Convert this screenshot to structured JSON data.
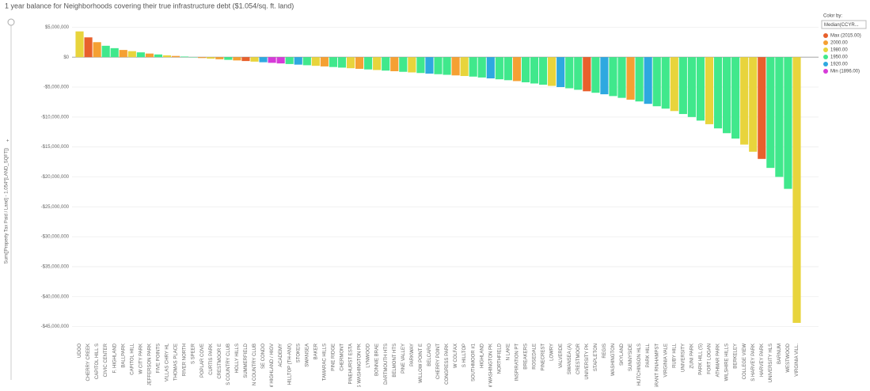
{
  "chart_data": {
    "type": "bar",
    "title": "1 year balance for Neighborhoods covering their true infrastructure debt ($1.054/sq. ft. land)",
    "y_label": "Sum([Property Tax Paid / Land] - 1.054*[LAND_SQFT])",
    "legend_title": "Color by:",
    "legend_selector": "Median(CCYR...",
    "legend": [
      {
        "name": "Max (2015.00)",
        "color": "#e8602c"
      },
      {
        "name": "2000.00",
        "color": "#f5a033"
      },
      {
        "name": "1980.00",
        "color": "#e8d43c"
      },
      {
        "name": "1950.00",
        "color": "#40e88c"
      },
      {
        "name": "1920.00",
        "color": "#2ea8e0"
      },
      {
        "name": "Min (1896.00)",
        "color": "#d63bd8"
      }
    ],
    "categories": [
      "UDOO",
      "CHERRY CREEK",
      "CAPITOL HILL S",
      "CIVIC CENTER",
      "F. HIGHLAND",
      "BALLPARK",
      "CAPITOL HILL",
      "W CITY PARK",
      "JEFFERSON PARK",
      "FIVE POINTS",
      "VILLAS CHRY HL",
      "THOMAS PLACE",
      "RIVER NORTH",
      "S SPEER",
      "POPLAR COVE",
      "CURTIS PARK",
      "CRESTMOOR E",
      "S COUNTRY CLUB",
      "HOLLY HILLS",
      "SUMMERFIELD",
      "N COUNTRY CLUB",
      "SE CONDO",
      "W HIGHLAND / HIGV",
      "ACADEMY",
      "HILLTOP (TH-ANX)",
      "STOKES",
      "SWANSEA",
      "BAKER",
      "TAMARAC HILLS",
      "PINE RIDGE",
      "CHERMONT",
      "PINEHURST ESTA",
      "S WASHINGTON PK",
      "LYNWOOD",
      "BONNIE BRAE",
      "DARTMOUTH HTS",
      "BELMONT HTS",
      "PINE VALLEY",
      "PARKWAY",
      "WILLOW POINT E",
      "BELCARO",
      "CHERRY POINT",
      "CONGRESS PARK",
      "W COLFAX",
      "S HILLTOP",
      "SOUTHMOOR #1",
      "HIGHLAND",
      "W WASHINGTON PK",
      "NORTHFIELD",
      "N LAKE",
      "INSPIRATION PT",
      "BREAKERS",
      "ROSEDALE",
      "PINECREST",
      "LOWRY",
      "VALVERDE",
      "SWANSEA (A)",
      "CRESTMOOR",
      "UNIVERSITY PK",
      "STAPLETON",
      "REGIS",
      "WASHINGTON",
      "SKYLAND",
      "SUNNYSIDE",
      "HUTCHINSON HLS",
      "PARK HILL",
      "GRANT RN/HAMPST",
      "VIRGINIA VALE",
      "RUBY HILL",
      "UNIVERSITY",
      "ZUNI PARK",
      "PARK HILL (S)",
      "FORT LOGAN",
      "ATHMAR PARK",
      "WILSHIRE HILLS",
      "BERKELEY",
      "COLLEGE VIEW",
      "S HARVEY PARK",
      "HARVEY PARK",
      "UNIVERSITY HLS",
      "BARNUM",
      "WESTWOOD",
      "VIRGINIA VILL."
    ],
    "values": [
      4300000,
      3300000,
      2500000,
      1900000,
      1500000,
      1200000,
      1000000,
      800000,
      600000,
      450000,
      300000,
      200000,
      100000,
      -50000,
      -150000,
      -250000,
      -350000,
      -450000,
      -550000,
      -650000,
      -750000,
      -850000,
      -950000,
      -1050000,
      -1150000,
      -1250000,
      -1350000,
      -1450000,
      -1550000,
      -1650000,
      -1750000,
      -1850000,
      -1950000,
      -2050000,
      -2150000,
      -2250000,
      -2350000,
      -2450000,
      -2550000,
      -2650000,
      -2750000,
      -2850000,
      -2950000,
      -3050000,
      -3150000,
      -3250000,
      -3400000,
      -3550000,
      -3700000,
      -3850000,
      -4000000,
      -4200000,
      -4400000,
      -4600000,
      -4800000,
      -5000000,
      -5200000,
      -5450000,
      -5700000,
      -5950000,
      -6200000,
      -6500000,
      -6800000,
      -7100000,
      -7400000,
      -7800000,
      -8200000,
      -8600000,
      -9000000,
      -9500000,
      -10000000,
      -10600000,
      -11200000,
      -11900000,
      -12700000,
      -13600000,
      -14600000,
      -15800000,
      -17000000,
      -18500000,
      -20000000,
      -22000000,
      -44382361
    ],
    "colors": [
      "#e8d43c",
      "#e8602c",
      "#f5a033",
      "#40e88c",
      "#40e88c",
      "#f5a033",
      "#e8d43c",
      "#40e88c",
      "#f5a033",
      "#40e88c",
      "#e8d43c",
      "#f5a033",
      "#40e88c",
      "#40e88c",
      "#f5a033",
      "#e8d43c",
      "#f5a033",
      "#40e88c",
      "#f5a033",
      "#e8602c",
      "#e8d43c",
      "#2ea8e0",
      "#d63bd8",
      "#d63bd8",
      "#40e88c",
      "#2ea8e0",
      "#40e88c",
      "#e8d43c",
      "#f5a033",
      "#40e88c",
      "#40e88c",
      "#e8d43c",
      "#f5a033",
      "#40e88c",
      "#e8d43c",
      "#40e88c",
      "#f5a033",
      "#40e88c",
      "#e8d43c",
      "#40e88c",
      "#2ea8e0",
      "#40e88c",
      "#40e88c",
      "#f5a033",
      "#e8d43c",
      "#40e88c",
      "#40e88c",
      "#2ea8e0",
      "#40e88c",
      "#40e88c",
      "#f5a033",
      "#40e88c",
      "#40e88c",
      "#40e88c",
      "#e8d43c",
      "#2ea8e0",
      "#40e88c",
      "#40e88c",
      "#e8602c",
      "#40e88c",
      "#2ea8e0",
      "#40e88c",
      "#40e88c",
      "#f5a033",
      "#40e88c",
      "#2ea8e0",
      "#40e88c",
      "#40e88c",
      "#e8d43c",
      "#40e88c",
      "#40e88c",
      "#40e88c",
      "#e8d43c",
      "#40e88c",
      "#40e88c",
      "#40e88c",
      "#e8d43c",
      "#e8d43c",
      "#e8602c",
      "#40e88c",
      "#40e88c",
      "#40e88c",
      "#e8d43c"
    ],
    "ylim": [
      -47300000,
      6900000
    ],
    "yticks": [
      {
        "value": 5000000,
        "label": "$5,000,000"
      },
      {
        "value": 0,
        "label": "$0"
      },
      {
        "value": -5000000,
        "label": "-$5,000,000"
      },
      {
        "value": -10000000,
        "label": "-$10,000,000"
      },
      {
        "value": -15000000,
        "label": "-$15,000,000"
      },
      {
        "value": -20000000,
        "label": "-$20,000,000"
      },
      {
        "value": -25000000,
        "label": "-$25,000,000"
      },
      {
        "value": -30000000,
        "label": "-$30,000,000"
      },
      {
        "value": -35000000,
        "label": "-$35,000,000"
      },
      {
        "value": -40000000,
        "label": "-$40,000,000"
      },
      {
        "value": -45000000,
        "label": "-$45,000,000"
      }
    ],
    "grid": true
  }
}
